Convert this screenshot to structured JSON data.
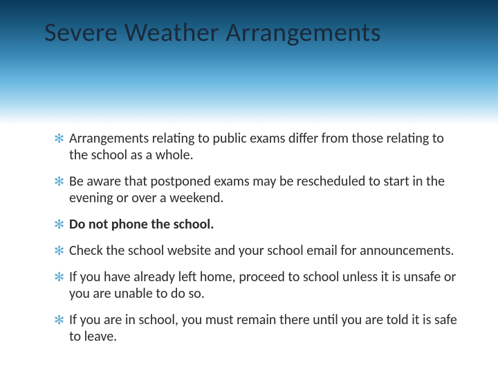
{
  "slide": {
    "title": "Severe Weather Arrangements",
    "header_gradient": {
      "stops": [
        "#0a3a5a",
        "#1a5a80",
        "#3a8ab8",
        "#6ab8e0",
        "#a8d8f0",
        "#e8f4fa",
        "#ffffff"
      ]
    },
    "title_color": "#1a2a3a",
    "title_fontsize": 38,
    "bullet_glyph": "✻",
    "bullet_color": "#5aa8d0",
    "body_fontsize": 20,
    "body_color": "#2a2a2a",
    "bullets": [
      {
        "text": "Arrangements relating to public exams differ from those relating to the school as a whole.",
        "bold": false
      },
      {
        "text": "Be aware that postponed exams may be rescheduled to start in the evening or over a weekend.",
        "bold": false
      },
      {
        "text": "Do not phone the school.",
        "bold": true
      },
      {
        "text": "Check the school website and your school email for announcements.",
        "bold": false
      },
      {
        "text": "If you have already left home, proceed to school unless it is unsafe or you are unable to do so.",
        "bold": false
      },
      {
        "text": "If you are in school, you must remain there until you are told it is safe to leave.",
        "bold": false
      }
    ]
  }
}
